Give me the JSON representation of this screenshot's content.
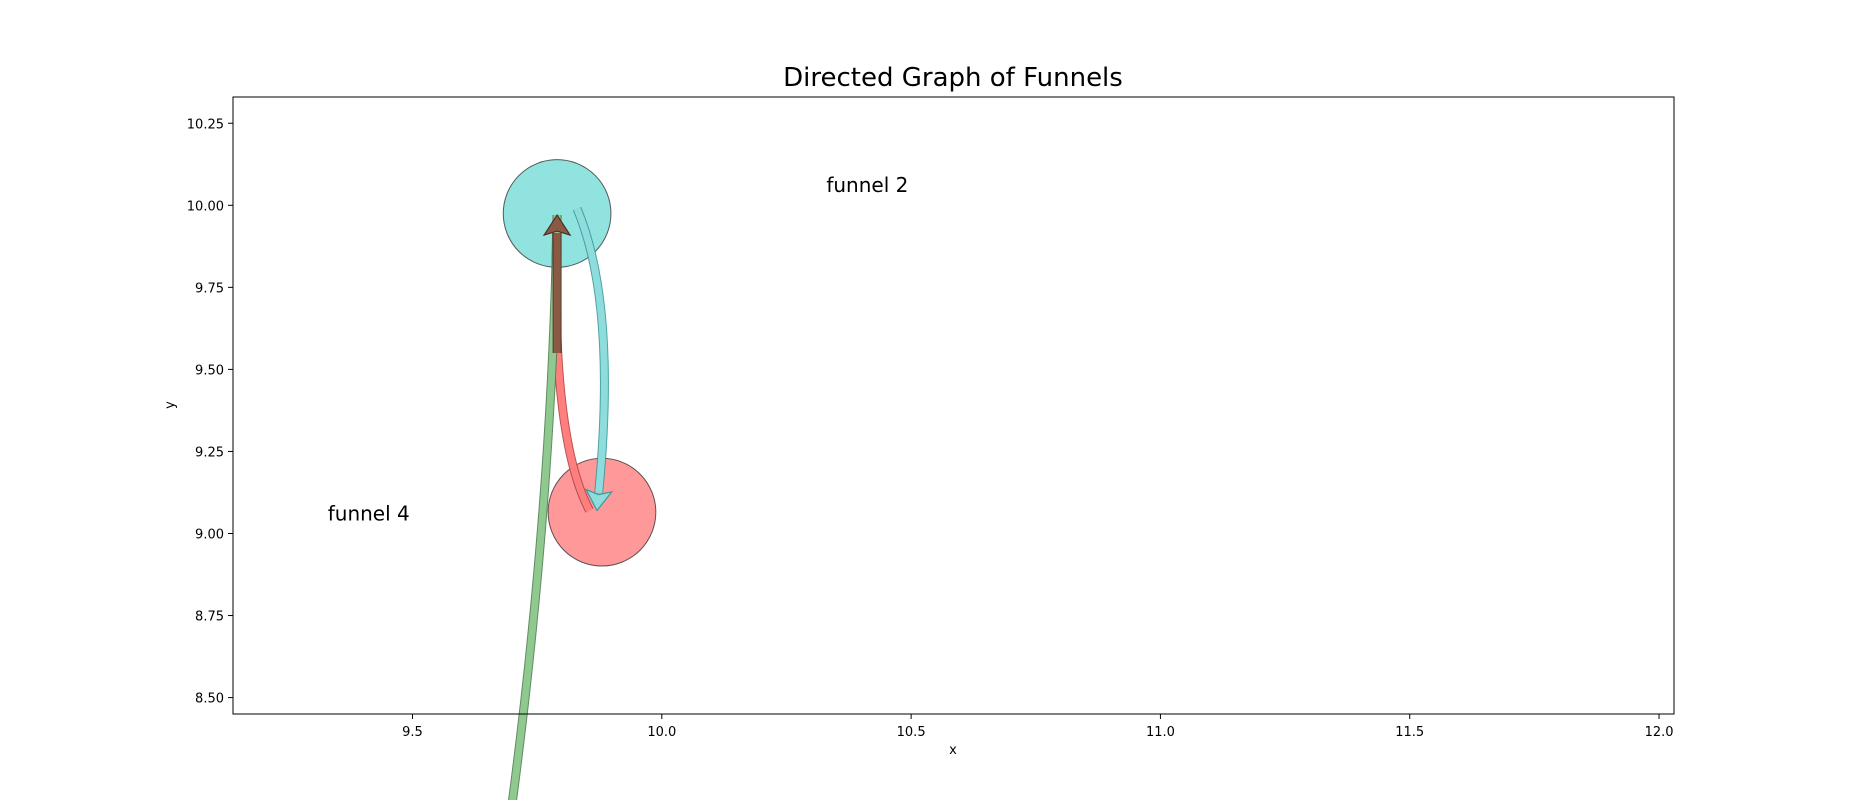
{
  "chart_data": {
    "type": "network",
    "title": "Directed Graph of Funnels",
    "xlabel": "x",
    "ylabel": "y",
    "xlim": [
      9.14,
      12.03
    ],
    "ylim": [
      8.45,
      10.33
    ],
    "xticks": [
      "9.5",
      "10.0",
      "10.5",
      "11.0",
      "11.5",
      "12.0"
    ],
    "yticks": [
      "8.50",
      "8.75",
      "9.00",
      "9.25",
      "9.50",
      "9.75",
      "10.00",
      "10.25"
    ],
    "grid": false,
    "nodes": [
      {
        "id": "top",
        "x": 9.79,
        "y": 9.975,
        "radius": 0.108,
        "color": "#48d1cc"
      },
      {
        "id": "bottom",
        "x": 9.88,
        "y": 9.065,
        "radius": 0.108,
        "color": "#ff5555"
      }
    ],
    "labels": [
      {
        "text": "funnel 2",
        "x": 10.33,
        "y": 10.04
      },
      {
        "text": "funnel 4",
        "x": 9.33,
        "y": 9.04
      }
    ],
    "edges": [
      {
        "from": [
          9.83,
          9.99
        ],
        "to": [
          9.87,
          9.07
        ],
        "control": [
          9.91,
          9.7
        ],
        "color": "#8fdcdc",
        "stroke": "#3a9999",
        "head": true
      },
      {
        "from": [
          9.79,
          9.97
        ],
        "to": [
          9.855,
          9.07
        ],
        "control": [
          9.775,
          9.3
        ],
        "color": "#ff7f7f",
        "stroke": "#b34040",
        "head": false
      },
      {
        "from": [
          9.7,
          8.18
        ],
        "to": [
          9.79,
          9.97
        ],
        "control": [
          9.78,
          9.1
        ],
        "color": "#8fc98f",
        "stroke": "#4f7f4f",
        "head": false
      },
      {
        "from": [
          9.79,
          9.55
        ],
        "to": [
          9.79,
          9.97
        ],
        "control": [
          9.79,
          9.76
        ],
        "color": "#8b5a45",
        "stroke": "#4a2e22",
        "head": true
      }
    ]
  }
}
